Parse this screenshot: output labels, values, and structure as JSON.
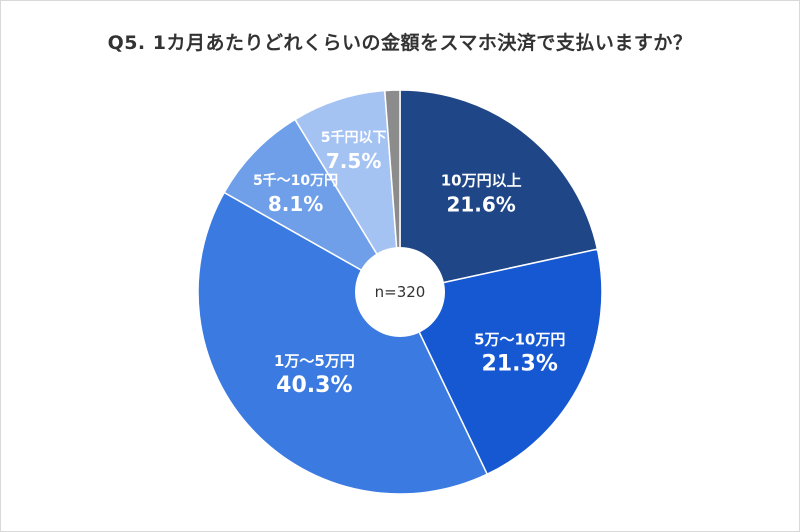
{
  "chart_data": {
    "type": "pie",
    "title": "Q5. 1カ月あたりどれくらいの金額をスマホ決済で支払いますか？",
    "center_label": "n=320",
    "start_angle_deg": 0,
    "direction": "clockwise",
    "slices": [
      {
        "label": "10万円以上",
        "value": 21.6,
        "value_text": "21.6%",
        "color": "#1f4687"
      },
      {
        "label": "5万〜10万円",
        "value": 21.3,
        "value_text": "21.3%",
        "color": "#1558d1"
      },
      {
        "label": "1万〜5万円",
        "value": 40.3,
        "value_text": "40.3%",
        "color": "#3b7ae0"
      },
      {
        "label": "5千〜10万円",
        "value": 8.1,
        "value_text": "8.1%",
        "color": "#6e9fe8"
      },
      {
        "label": "5千円以下",
        "value": 7.5,
        "value_text": "7.5%",
        "color": "#a5c3f2"
      },
      {
        "label": "",
        "value": 1.2,
        "value_text": "",
        "color": "#8c8c8c"
      }
    ]
  }
}
